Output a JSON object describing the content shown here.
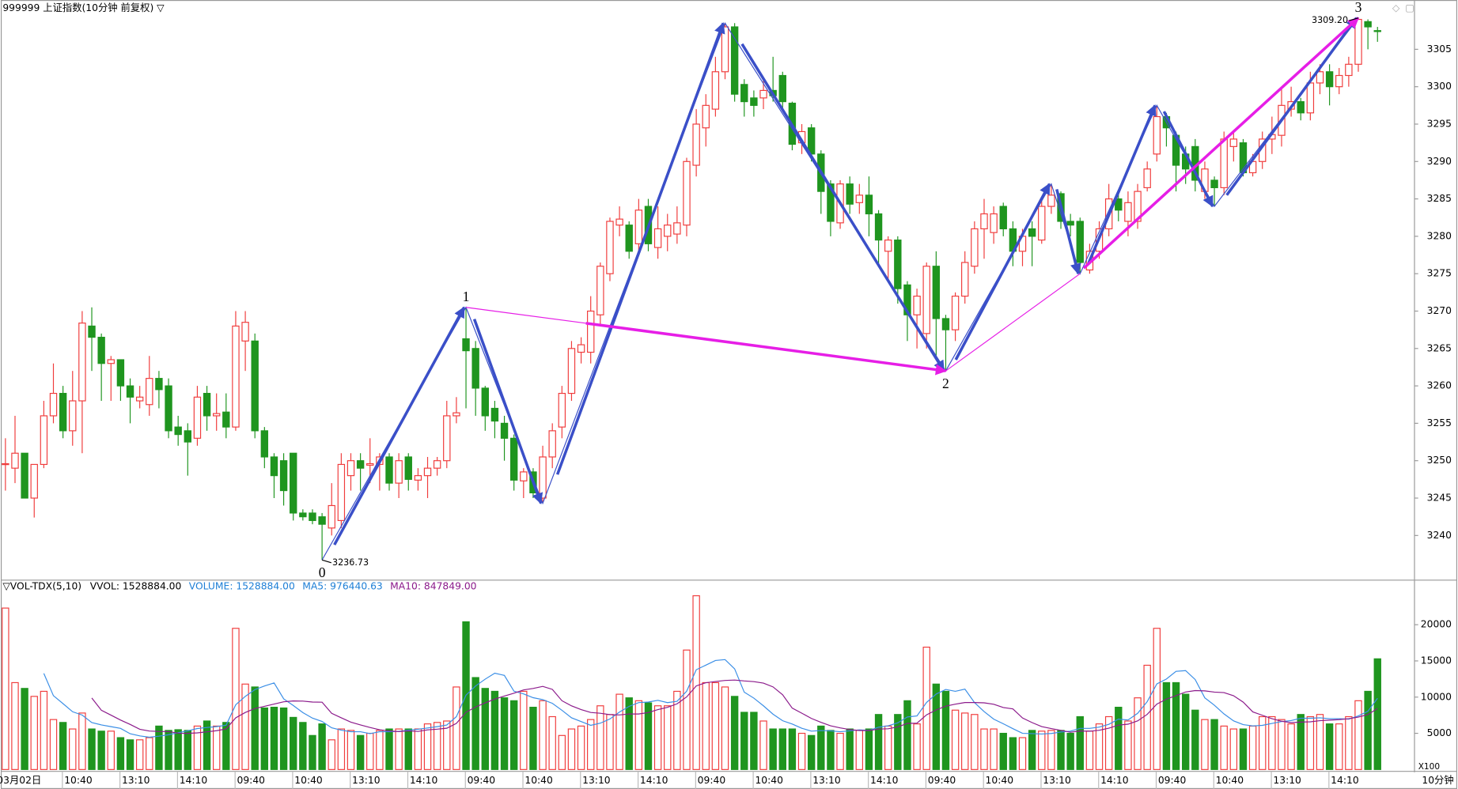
{
  "chart_data": [
    {
      "type": "candlestick",
      "title": "999999 上证指数(10分钟 前复权) ▽",
      "up_color": "#f03c3c",
      "down_color": "#1f951f",
      "ylim": [
        3234.4,
        3310.6
      ],
      "yticks": [
        3240,
        3245,
        3250,
        3255,
        3260,
        3265,
        3270,
        3275,
        3280,
        3285,
        3290,
        3295,
        3300,
        3305
      ],
      "ohlc": [
        [
          3249.5,
          3253,
          3246,
          3249.6
        ],
        [
          3249,
          3256,
          3247,
          3251
        ],
        [
          3251,
          3251,
          3245,
          3245
        ],
        [
          3245,
          3249.5,
          3242.4,
          3249.5
        ],
        [
          3249.5,
          3258,
          3249,
          3256
        ],
        [
          3256,
          3263,
          3255,
          3259
        ],
        [
          3259,
          3260,
          3253,
          3254
        ],
        [
          3254,
          3262,
          3252,
          3258
        ],
        [
          3258,
          3270,
          3251,
          3268.4
        ],
        [
          3268,
          3270.5,
          3262,
          3266.5
        ],
        [
          3266.5,
          3267,
          3258,
          3263
        ],
        [
          3263,
          3264,
          3258,
          3263.5
        ],
        [
          3263.5,
          3263.5,
          3258,
          3260
        ],
        [
          3260,
          3261,
          3255,
          3258.5
        ],
        [
          3258,
          3260,
          3257,
          3258.5
        ],
        [
          3257.5,
          3264,
          3256,
          3261
        ],
        [
          3261,
          3262,
          3257,
          3259.5
        ],
        [
          3260,
          3261,
          3253,
          3254
        ],
        [
          3254.5,
          3256,
          3252,
          3253.5
        ],
        [
          3254,
          3255,
          3248,
          3252.5
        ],
        [
          3253,
          3260,
          3252,
          3258.5
        ],
        [
          3259,
          3260,
          3254,
          3256
        ],
        [
          3256,
          3259,
          3254,
          3256.3
        ],
        [
          3256.5,
          3259,
          3253,
          3254.5
        ],
        [
          3254.5,
          3270,
          3254,
          3268
        ],
        [
          3266,
          3270,
          3262,
          3268.5
        ],
        [
          3266,
          3267,
          3253,
          3254
        ],
        [
          3254,
          3254.5,
          3249,
          3250.5
        ],
        [
          3250.5,
          3251,
          3245,
          3248
        ],
        [
          3250,
          3251,
          3244,
          3246
        ],
        [
          3251,
          3251,
          3242,
          3243
        ],
        [
          3243,
          3243.5,
          3242,
          3242.5
        ],
        [
          3243,
          3243.5,
          3241.5,
          3242
        ],
        [
          3242.5,
          3243,
          3236.73,
          3241.5
        ],
        [
          3241,
          3247,
          3240,
          3244
        ],
        [
          3242,
          3251,
          3241,
          3249.5
        ],
        [
          3248,
          3251,
          3246,
          3250
        ],
        [
          3250,
          3251,
          3246,
          3249
        ],
        [
          3249.4,
          3253,
          3247,
          3249.6
        ],
        [
          3249.5,
          3251,
          3246,
          3250.5
        ],
        [
          3250.5,
          3251,
          3246,
          3247
        ],
        [
          3247,
          3251,
          3245,
          3250
        ],
        [
          3250.5,
          3251,
          3246,
          3247.5
        ],
        [
          3247.4,
          3249,
          3246,
          3248
        ],
        [
          3248,
          3250.5,
          3245,
          3249
        ],
        [
          3249,
          3250.5,
          3248,
          3250
        ],
        [
          3250,
          3258,
          3249,
          3256
        ],
        [
          3256,
          3258.5,
          3255,
          3256.4
        ],
        [
          3266.3,
          3270.5,
          3257,
          3264.7
        ],
        [
          3265,
          3266,
          3256,
          3259.7
        ],
        [
          3259.7,
          3260,
          3254,
          3256
        ],
        [
          3257,
          3258,
          3253,
          3255.3
        ],
        [
          3255,
          3256,
          3250,
          3253
        ],
        [
          3253,
          3253.5,
          3246,
          3247.4
        ],
        [
          3247.3,
          3249,
          3245,
          3248.5
        ],
        [
          3248.5,
          3249,
          3245,
          3245.7
        ],
        [
          3245,
          3252,
          3244.3,
          3250.5
        ],
        [
          3250.5,
          3255,
          3249,
          3254
        ],
        [
          3254.5,
          3260,
          3253,
          3259
        ],
        [
          3259,
          3266,
          3258,
          3265
        ],
        [
          3264.5,
          3266.5,
          3263,
          3265.5
        ],
        [
          3264.5,
          3272,
          3263,
          3270
        ],
        [
          3269.5,
          3276.5,
          3268,
          3276
        ],
        [
          3275,
          3282.5,
          3274,
          3282
        ],
        [
          3281.5,
          3284,
          3280,
          3282.3
        ],
        [
          3281.5,
          3282,
          3277,
          3278
        ],
        [
          3279,
          3285,
          3278,
          3283.5
        ],
        [
          3284,
          3285,
          3278,
          3279
        ],
        [
          3278.5,
          3284,
          3277,
          3281
        ],
        [
          3280,
          3283,
          3278,
          3281.5
        ],
        [
          3280.3,
          3284,
          3279,
          3281.8
        ],
        [
          3281.5,
          3290.5,
          3280,
          3290
        ],
        [
          3289.5,
          3297,
          3288,
          3295
        ],
        [
          3294.5,
          3299,
          3292,
          3297.5
        ],
        [
          3297,
          3304,
          3296,
          3302
        ],
        [
          3302,
          3308.5,
          3301,
          3308
        ],
        [
          3308,
          3308.5,
          3298,
          3299
        ],
        [
          3300.3,
          3301,
          3296,
          3298
        ],
        [
          3298.5,
          3299.5,
          3296,
          3297.5
        ],
        [
          3298.5,
          3301,
          3297,
          3299.5
        ],
        [
          3299.5,
          3304,
          3298,
          3298.8
        ],
        [
          3301.5,
          3302,
          3297,
          3298
        ],
        [
          3297.8,
          3298,
          3291.5,
          3292.3
        ],
        [
          3292.5,
          3295,
          3291,
          3294
        ],
        [
          3294.5,
          3295,
          3290,
          3291
        ],
        [
          3291,
          3291.5,
          3283,
          3286
        ],
        [
          3287,
          3287.5,
          3280,
          3282
        ],
        [
          3281.8,
          3287.5,
          3281,
          3287
        ],
        [
          3287,
          3288,
          3283,
          3284.3
        ],
        [
          3284.5,
          3287,
          3283,
          3285.5
        ],
        [
          3285.5,
          3288,
          3280,
          3283
        ],
        [
          3283,
          3283.5,
          3276,
          3279.5
        ],
        [
          3278,
          3280,
          3274,
          3279.5
        ],
        [
          3279.5,
          3280,
          3271,
          3273
        ],
        [
          3273.5,
          3274,
          3266,
          3269.5
        ],
        [
          3269.5,
          3273,
          3265,
          3272
        ],
        [
          3267,
          3276.5,
          3265,
          3276
        ],
        [
          3276,
          3278,
          3264,
          3269
        ],
        [
          3269,
          3269.5,
          3262,
          3267.5
        ],
        [
          3267.5,
          3272.5,
          3266,
          3272
        ],
        [
          3272,
          3278,
          3271,
          3276.5
        ],
        [
          3276,
          3282,
          3275,
          3281
        ],
        [
          3281,
          3285,
          3277,
          3283
        ],
        [
          3280.5,
          3284,
          3279,
          3283
        ],
        [
          3284,
          3284.5,
          3280,
          3281
        ],
        [
          3281,
          3282,
          3276,
          3278
        ],
        [
          3278,
          3281,
          3276,
          3280
        ],
        [
          3281,
          3282,
          3276,
          3280
        ],
        [
          3279.5,
          3285,
          3279,
          3284
        ],
        [
          3284,
          3287,
          3283,
          3285.5
        ],
        [
          3285.7,
          3286,
          3281,
          3282
        ],
        [
          3282,
          3283,
          3280,
          3281.5
        ],
        [
          3282,
          3282.5,
          3275,
          3276.5
        ],
        [
          3275.5,
          3279,
          3275,
          3278
        ],
        [
          3278,
          3282,
          3277,
          3281
        ],
        [
          3281,
          3287,
          3280,
          3285
        ],
        [
          3285,
          3286,
          3282,
          3283.5
        ],
        [
          3282,
          3286,
          3280,
          3284.5
        ],
        [
          3282,
          3287,
          3281,
          3286
        ],
        [
          3286.5,
          3290,
          3286,
          3289
        ],
        [
          3291,
          3297.5,
          3290,
          3296
        ],
        [
          3296,
          3296.5,
          3292,
          3294.5
        ],
        [
          3293.5,
          3294,
          3286,
          3289.5
        ],
        [
          3291,
          3292,
          3287,
          3289
        ],
        [
          3292,
          3293,
          3286,
          3287.5
        ],
        [
          3286,
          3290,
          3285,
          3289
        ],
        [
          3287.5,
          3288,
          3284,
          3286.5
        ],
        [
          3286.5,
          3294,
          3285.5,
          3293
        ],
        [
          3292,
          3294,
          3290,
          3293
        ],
        [
          3292.5,
          3293,
          3288,
          3288.5
        ],
        [
          3288.5,
          3291,
          3288,
          3290
        ],
        [
          3290,
          3294,
          3289,
          3293
        ],
        [
          3293,
          3296,
          3291,
          3293.6
        ],
        [
          3293.5,
          3300,
          3292,
          3297.5
        ],
        [
          3297,
          3300,
          3296,
          3298
        ],
        [
          3298,
          3298.5,
          3295.5,
          3296.5
        ],
        [
          3296.5,
          3302,
          3295.5,
          3300.5
        ],
        [
          3300.5,
          3303,
          3299,
          3302
        ],
        [
          3302,
          3303,
          3297.5,
          3300
        ],
        [
          3300,
          3302.5,
          3299,
          3301.5
        ],
        [
          3301.5,
          3304,
          3300,
          3303
        ],
        [
          3303,
          3309.2,
          3302,
          3309
        ],
        [
          3308.7,
          3309,
          3305,
          3308
        ],
        [
          3307.5,
          3308,
          3306,
          3307.4
        ]
      ],
      "waves": [
        {
          "label": "0",
          "index": 33,
          "value": 3236.73,
          "value_label": "3236.73"
        },
        {
          "label": "1",
          "index": 48,
          "value": 3270.5
        },
        {
          "label": "2",
          "index": 98,
          "value": 3262
        },
        {
          "label": "3",
          "index": 141,
          "value": 3309.2,
          "value_label": "3309.20"
        }
      ],
      "swings": [
        {
          "index": 33,
          "value": 3236.73
        },
        {
          "index": 48,
          "value": 3270.5
        },
        {
          "index": 56,
          "value": 3244.3
        },
        {
          "index": 75,
          "value": 3308.5
        },
        {
          "index": 98,
          "value": 3262
        },
        {
          "index": 109,
          "value": 3287
        },
        {
          "index": 112,
          "value": 3275
        },
        {
          "index": 120,
          "value": 3297.5
        },
        {
          "index": 126,
          "value": 3284
        },
        {
          "index": 141,
          "value": 3309.2
        }
      ],
      "wave_color": "#3a4fc8",
      "trend_color": "#e61ee6"
    },
    {
      "type": "volume",
      "title": "▽VOL-TDX(5,10)",
      "readouts": [
        {
          "text": "VVOL: 1528884.00",
          "color": "#000000"
        },
        {
          "text": "VOLUME: 1528884.00",
          "color": "#1e7fd6"
        },
        {
          "text": "MA5: 976440.63",
          "color": "#1e7fd6"
        },
        {
          "text": "MA10: 847849.00",
          "color": "#8b1a8b"
        }
      ],
      "ma": [
        {
          "period": 5,
          "color": "#3a8ee6"
        },
        {
          "period": 10,
          "color": "#8b1a8b"
        }
      ],
      "ylim": [
        0,
        25770
      ],
      "yticks": [
        5000,
        10000,
        15000,
        20000
      ],
      "unit_label": "X100",
      "x_unit_label": "10分钟",
      "categories": [
        "03月02日",
        null,
        null,
        null,
        null,
        null,
        null,
        "10:40",
        null,
        null,
        null,
        null,
        null,
        "13:10",
        null,
        null,
        null,
        null,
        null,
        "14:10",
        null,
        null,
        null,
        null,
        null,
        "09:40",
        null,
        null,
        null,
        null,
        null,
        "10:40",
        null,
        null,
        null,
        null,
        null,
        "13:10",
        null,
        null,
        null,
        null,
        null,
        "14:10",
        null,
        null,
        null,
        null,
        null,
        "09:40",
        null,
        null,
        null,
        null,
        null,
        "10:40",
        null,
        null,
        null,
        null,
        null,
        "13:10",
        null,
        null,
        null,
        null,
        null,
        "14:10",
        null,
        null,
        null,
        null,
        null,
        "09:40",
        null,
        null,
        null,
        null,
        null,
        "10:40",
        null,
        null,
        null,
        null,
        null,
        "13:10",
        null,
        null,
        null,
        null,
        null,
        "14:10",
        null,
        null,
        null,
        null,
        null,
        "09:40",
        null,
        null,
        null,
        null,
        null,
        "10:40",
        null,
        null,
        null,
        null,
        null,
        "13:10",
        null,
        null,
        null,
        null,
        null,
        "14:10",
        null,
        null,
        null,
        null,
        null,
        "09:40",
        null,
        null,
        null,
        null,
        null,
        "10:40",
        null,
        null,
        null,
        null,
        null,
        "13:10",
        null,
        null,
        null,
        null,
        null,
        "14:10",
        null,
        null,
        null,
        null
      ],
      "values": [
        22300,
        12000,
        11200,
        10100,
        10800,
        6900,
        6500,
        5600,
        7800,
        5600,
        5300,
        5300,
        4400,
        4100,
        4100,
        4400,
        6000,
        5400,
        5500,
        5400,
        6000,
        6700,
        6000,
        6500,
        19500,
        11800,
        11400,
        8500,
        8600,
        8500,
        7200,
        6500,
        4700,
        6300,
        4100,
        5600,
        5400,
        4700,
        5000,
        5400,
        5600,
        5600,
        5600,
        5600,
        6300,
        6500,
        6700,
        11400,
        20400,
        12700,
        11200,
        10800,
        9900,
        9500,
        10800,
        8600,
        9500,
        7300,
        4700,
        5600,
        6000,
        6900,
        8800,
        7600,
        10400,
        9900,
        9500,
        9200,
        8800,
        8800,
        10800,
        16500,
        24000,
        12000,
        12000,
        11400,
        10100,
        7900,
        7900,
        6700,
        5600,
        5600,
        5600,
        5000,
        4700,
        6000,
        5400,
        5000,
        5600,
        5400,
        5600,
        7600,
        6000,
        7600,
        9500,
        6300,
        16900,
        11800,
        10800,
        8200,
        7800,
        7600,
        5600,
        5600,
        5000,
        4400,
        4400,
        5400,
        5300,
        5400,
        5400,
        5000,
        7300,
        5300,
        6300,
        7300,
        8600,
        6700,
        9900,
        14400,
        19500,
        12000,
        12000,
        10400,
        8200,
        6900,
        6900,
        6000,
        5600,
        5600,
        6000,
        7300,
        7300,
        6900,
        6300,
        7600,
        7300,
        7600,
        6300,
        6300,
        7300,
        9500,
        10800,
        15288.84
      ]
    }
  ]
}
